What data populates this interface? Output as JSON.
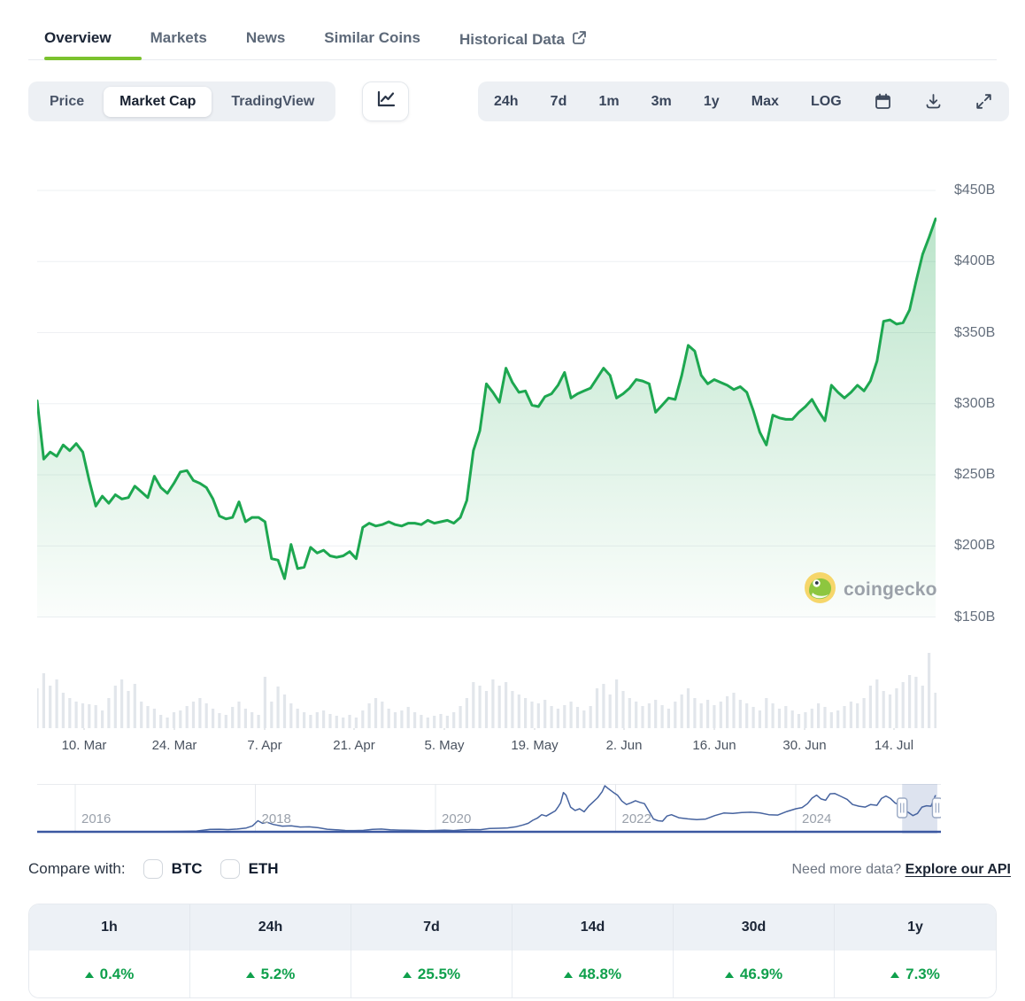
{
  "tabs": {
    "items": [
      {
        "label": "Overview",
        "active": true
      },
      {
        "label": "Markets",
        "active": false
      },
      {
        "label": "News",
        "active": false
      },
      {
        "label": "Similar Coins",
        "active": false
      },
      {
        "label": "Historical Data",
        "active": false,
        "external": true
      }
    ],
    "underline_color": "#7bc22e"
  },
  "toolbar": {
    "mode_tabs": [
      {
        "label": "Price",
        "selected": false
      },
      {
        "label": "Market Cap",
        "selected": true
      },
      {
        "label": "TradingView",
        "selected": false
      }
    ],
    "ranges": [
      "24h",
      "7d",
      "1m",
      "3m",
      "1y",
      "Max",
      "LOG"
    ],
    "icon_buttons": [
      "calendar-icon",
      "download-icon",
      "fullscreen-icon"
    ]
  },
  "chart_data": {
    "type": "area",
    "series_name": "Market Cap",
    "unit": "USD billions",
    "line_color": "#1da750",
    "y_min": 150,
    "y_max": 450,
    "y_tick_labels": [
      "$450B",
      "$400B",
      "$350B",
      "$300B",
      "$250B",
      "$200B",
      "$150B"
    ],
    "x_tick_labels": [
      "10. Mar",
      "24. Mar",
      "7. Apr",
      "21. Apr",
      "5. May",
      "19. May",
      "2. Jun",
      "16. Jun",
      "30. Jun",
      "14. Jul"
    ],
    "x_range": [
      "3. Mar",
      "19. Jul"
    ],
    "market_cap_values_billusd": [
      302,
      261,
      266,
      263,
      271,
      267,
      272,
      266,
      246,
      228,
      235,
      230,
      236,
      233,
      234,
      242,
      238,
      234,
      249,
      241,
      237,
      244,
      252,
      253,
      246,
      244,
      241,
      233,
      221,
      219,
      220,
      231,
      217,
      220,
      220,
      217,
      191,
      190,
      177,
      201,
      184,
      185,
      199,
      195,
      197,
      193,
      192,
      193,
      196,
      191,
      213,
      216,
      214,
      215,
      217,
      215,
      214,
      216,
      216,
      215,
      218,
      216,
      217,
      218,
      216,
      220,
      232,
      267,
      281,
      314,
      308,
      301,
      325,
      315,
      308,
      309,
      299,
      298,
      305,
      307,
      313,
      322,
      304,
      307,
      309,
      311,
      318,
      325,
      320,
      304,
      307,
      311,
      317,
      316,
      314,
      294,
      299,
      304,
      303,
      320,
      341,
      337,
      320,
      314,
      317,
      315,
      313,
      310,
      312,
      308,
      295,
      280,
      271,
      292,
      290,
      289,
      289,
      294,
      298,
      303,
      295,
      288,
      313,
      308,
      304,
      308,
      313,
      309,
      316,
      330,
      358,
      359,
      356,
      357,
      366,
      386,
      405,
      417,
      430
    ],
    "volume_bars_rel": [
      45,
      62,
      48,
      55,
      40,
      34,
      30,
      28,
      27,
      26,
      20,
      34,
      48,
      55,
      42,
      50,
      30,
      25,
      22,
      15,
      12,
      18,
      20,
      25,
      30,
      34,
      28,
      22,
      17,
      15,
      24,
      30,
      22,
      18,
      15,
      58,
      30,
      47,
      38,
      28,
      22,
      18,
      15,
      18,
      20,
      16,
      14,
      12,
      15,
      12,
      20,
      28,
      34,
      30,
      22,
      18,
      20,
      24,
      18,
      15,
      12,
      14,
      16,
      14,
      18,
      25,
      34,
      52,
      48,
      42,
      55,
      48,
      52,
      42,
      38,
      34,
      30,
      28,
      32,
      25,
      22,
      26,
      30,
      24,
      20,
      25,
      45,
      50,
      38,
      55,
      42,
      34,
      30,
      25,
      28,
      32,
      26,
      22,
      30,
      38,
      45,
      34,
      28,
      32,
      26,
      30,
      36,
      40,
      32,
      28,
      24,
      20,
      34,
      28,
      22,
      25,
      20,
      16,
      18,
      22,
      28,
      24,
      18,
      20,
      25,
      30,
      28,
      34,
      48,
      55,
      42,
      38,
      45,
      52,
      60,
      58,
      48,
      85,
      40
    ],
    "navigator": {
      "year_ticks": [
        "2016",
        "2018",
        "2020",
        "2022",
        "2024"
      ],
      "x_start_year": 2015.58,
      "x_end_year": 2025.61,
      "selected_range_years": [
        2025.18,
        2025.57
      ],
      "line_color": "#46639f",
      "baseline_color": "#3b58a1",
      "selection_color": "#667eb4",
      "points": [
        [
          2015.6,
          0.5
        ],
        [
          2015.9,
          0.8
        ],
        [
          2016.2,
          1
        ],
        [
          2016.5,
          1.2
        ],
        [
          2016.8,
          1
        ],
        [
          2017.0,
          2
        ],
        [
          2017.2,
          5
        ],
        [
          2017.35,
          9
        ],
        [
          2017.5,
          28
        ],
        [
          2017.6,
          30
        ],
        [
          2017.7,
          26
        ],
        [
          2017.8,
          32
        ],
        [
          2017.9,
          45
        ],
        [
          2017.97,
          70
        ],
        [
          2018.03,
          130
        ],
        [
          2018.08,
          100
        ],
        [
          2018.13,
          112
        ],
        [
          2018.2,
          86
        ],
        [
          2018.3,
          66
        ],
        [
          2018.4,
          70
        ],
        [
          2018.5,
          56
        ],
        [
          2018.6,
          58
        ],
        [
          2018.7,
          48
        ],
        [
          2018.8,
          30
        ],
        [
          2018.9,
          24
        ],
        [
          2019.0,
          16
        ],
        [
          2019.1,
          15
        ],
        [
          2019.2,
          17
        ],
        [
          2019.3,
          28
        ],
        [
          2019.4,
          32
        ],
        [
          2019.5,
          23
        ],
        [
          2019.6,
          20
        ],
        [
          2019.7,
          19
        ],
        [
          2019.8,
          16
        ],
        [
          2019.9,
          14
        ],
        [
          2020.0,
          16
        ],
        [
          2020.1,
          20
        ],
        [
          2020.2,
          15
        ],
        [
          2020.3,
          22
        ],
        [
          2020.4,
          26
        ],
        [
          2020.5,
          25
        ],
        [
          2020.6,
          38
        ],
        [
          2020.7,
          42
        ],
        [
          2020.8,
          46
        ],
        [
          2020.9,
          60
        ],
        [
          2020.97,
          80
        ],
        [
          2021.03,
          100
        ],
        [
          2021.08,
          135
        ],
        [
          2021.13,
          160
        ],
        [
          2021.18,
          200
        ],
        [
          2021.23,
          185
        ],
        [
          2021.28,
          215
        ],
        [
          2021.33,
          245
        ],
        [
          2021.36,
          290
        ],
        [
          2021.39,
          340
        ],
        [
          2021.42,
          460
        ],
        [
          2021.45,
          430
        ],
        [
          2021.5,
          290
        ],
        [
          2021.55,
          250
        ],
        [
          2021.6,
          270
        ],
        [
          2021.65,
          235
        ],
        [
          2021.7,
          300
        ],
        [
          2021.75,
          350
        ],
        [
          2021.8,
          400
        ],
        [
          2021.85,
          470
        ],
        [
          2021.88,
          540
        ],
        [
          2021.92,
          505
        ],
        [
          2021.97,
          465
        ],
        [
          2022.02,
          430
        ],
        [
          2022.07,
          360
        ],
        [
          2022.12,
          320
        ],
        [
          2022.17,
          340
        ],
        [
          2022.22,
          365
        ],
        [
          2022.27,
          345
        ],
        [
          2022.32,
          330
        ],
        [
          2022.37,
          240
        ],
        [
          2022.42,
          150
        ],
        [
          2022.47,
          130
        ],
        [
          2022.52,
          125
        ],
        [
          2022.57,
          185
        ],
        [
          2022.62,
          200
        ],
        [
          2022.7,
          165
        ],
        [
          2022.8,
          152
        ],
        [
          2022.9,
          143
        ],
        [
          2023.0,
          150
        ],
        [
          2023.1,
          190
        ],
        [
          2023.2,
          220
        ],
        [
          2023.3,
          215
        ],
        [
          2023.4,
          225
        ],
        [
          2023.5,
          230
        ],
        [
          2023.6,
          222
        ],
        [
          2023.7,
          200
        ],
        [
          2023.8,
          196
        ],
        [
          2023.9,
          238
        ],
        [
          2024.0,
          270
        ],
        [
          2024.07,
          285
        ],
        [
          2024.13,
          330
        ],
        [
          2024.18,
          395
        ],
        [
          2024.23,
          430
        ],
        [
          2024.28,
          385
        ],
        [
          2024.33,
          370
        ],
        [
          2024.38,
          445
        ],
        [
          2024.43,
          450
        ],
        [
          2024.5,
          415
        ],
        [
          2024.57,
          380
        ],
        [
          2024.63,
          320
        ],
        [
          2024.7,
          300
        ],
        [
          2024.77,
          290
        ],
        [
          2024.83,
          320
        ],
        [
          2024.9,
          310
        ],
        [
          2024.95,
          390
        ],
        [
          2025.0,
          420
        ],
        [
          2025.05,
          390
        ],
        [
          2025.1,
          340
        ],
        [
          2025.15,
          310
        ],
        [
          2025.2,
          265
        ],
        [
          2025.25,
          225
        ],
        [
          2025.3,
          190
        ],
        [
          2025.35,
          215
        ],
        [
          2025.4,
          290
        ],
        [
          2025.45,
          305
        ],
        [
          2025.5,
          300
        ],
        [
          2025.55,
          430
        ]
      ]
    }
  },
  "watermark": {
    "text": "coingecko"
  },
  "compare": {
    "label": "Compare with:",
    "options": [
      {
        "label": "BTC",
        "checked": false
      },
      {
        "label": "ETH",
        "checked": false
      }
    ]
  },
  "api_prompt": {
    "text": "Need more data? ",
    "link_label": "Explore our API"
  },
  "perf_table": {
    "up_color": "#0fa04c",
    "columns": [
      {
        "label": "1h",
        "value": "0.4%",
        "direction": "up"
      },
      {
        "label": "24h",
        "value": "5.2%",
        "direction": "up"
      },
      {
        "label": "7d",
        "value": "25.5%",
        "direction": "up"
      },
      {
        "label": "14d",
        "value": "48.8%",
        "direction": "up"
      },
      {
        "label": "30d",
        "value": "46.9%",
        "direction": "up"
      },
      {
        "label": "1y",
        "value": "7.3%",
        "direction": "up"
      }
    ]
  }
}
